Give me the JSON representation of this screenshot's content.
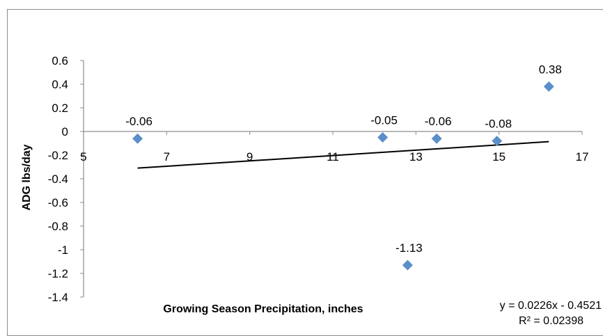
{
  "chart_data": {
    "type": "scatter",
    "title": "",
    "xlabel": "Growing Season Precipitation, inches",
    "ylabel": "ADG lbs/day",
    "xlim": [
      5,
      17
    ],
    "ylim": [
      -1.4,
      0.6
    ],
    "xticks": [
      5,
      7,
      9,
      11,
      13,
      15,
      17
    ],
    "yticks": [
      0.6,
      0.4,
      0.2,
      0,
      -0.2,
      -0.4,
      -0.6,
      -0.8,
      -1,
      -1.2,
      -1.4
    ],
    "ytick_labels": [
      "0.6",
      "0.4",
      "0.2",
      "0",
      "-0.2",
      "-0.4",
      "-0.6",
      "-0.8",
      "-1",
      "-1.2",
      "-1.4"
    ],
    "marker_color": "#5b8fc9",
    "points": [
      {
        "x": 6.3,
        "y": -0.06,
        "label": "-0.06"
      },
      {
        "x": 12.2,
        "y": -0.05,
        "label": "-0.05"
      },
      {
        "x": 12.8,
        "y": -1.13,
        "label": "-1.13"
      },
      {
        "x": 13.5,
        "y": -0.06,
        "label": "-0.06"
      },
      {
        "x": 14.95,
        "y": -0.08,
        "label": "-0.08"
      },
      {
        "x": 16.2,
        "y": 0.38,
        "label": "0.38"
      }
    ],
    "trendline": {
      "slope": 0.0226,
      "intercept": -0.4521,
      "x_range": [
        6.3,
        16.2
      ],
      "equation": "y = 0.0226x - 0.4521",
      "r_squared": "R² = 0.02398"
    },
    "grid": false,
    "legend": "none"
  }
}
